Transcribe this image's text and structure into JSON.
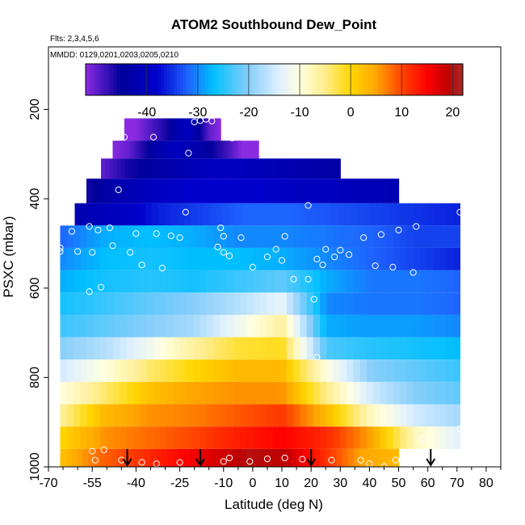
{
  "chart_data": {
    "type": "heatmap",
    "title": "ATOM2 Southbound Dew_Point",
    "subtitle_flights": "Flts: 2,3,4,5,6",
    "subtitle_dates": "MMDD: 0129,0201,0203,0205,0210",
    "xlabel": "Latitude (deg N)",
    "ylabel": "PSXC (mbar)",
    "xlim": [
      -70,
      85
    ],
    "ylim": [
      1000,
      60
    ],
    "y_reversed": true,
    "x_ticks": [
      -70,
      -55,
      -40,
      -25,
      -10,
      0,
      10,
      20,
      30,
      40,
      50,
      60,
      70,
      80
    ],
    "x_tick_labels": [
      "-70",
      "-55",
      "-40",
      "-25",
      "-10",
      "0",
      "10",
      "20",
      "30",
      "40",
      "50",
      "60",
      "70",
      "80"
    ],
    "x_minor_ticks": [
      -65,
      -60,
      -50,
      -45,
      -35,
      -30,
      -20,
      -15,
      -5,
      5,
      15,
      25,
      35,
      45,
      55,
      65,
      75,
      85
    ],
    "y_ticks": [
      200,
      400,
      600,
      800,
      1000
    ],
    "y_tick_labels": [
      "200",
      "400",
      "600",
      "800",
      "1000"
    ],
    "colorbar": {
      "range": [
        -52,
        22
      ],
      "ticks": [
        -40,
        -30,
        -20,
        -10,
        0,
        10,
        20
      ],
      "tick_labels": [
        "-40",
        "-30",
        "-20",
        "-10",
        "0",
        "10",
        "20"
      ],
      "colors": [
        {
          "v": -52,
          "c": "#8a2be2"
        },
        {
          "v": -45,
          "c": "#00009c"
        },
        {
          "v": -38,
          "c": "#0000cd"
        },
        {
          "v": -32,
          "c": "#1e64ff"
        },
        {
          "v": -27,
          "c": "#00bfff"
        },
        {
          "v": -20,
          "c": "#87cefa"
        },
        {
          "v": -14,
          "c": "#dff0ff"
        },
        {
          "v": -10,
          "c": "#ffffe0"
        },
        {
          "v": -5,
          "c": "#ffec8b"
        },
        {
          "v": 0,
          "c": "#ffd700"
        },
        {
          "v": 5,
          "c": "#ffa500"
        },
        {
          "v": 10,
          "c": "#ff4500"
        },
        {
          "v": 15,
          "c": "#ff0000"
        },
        {
          "v": 19,
          "c": "#c00000"
        },
        {
          "v": 22,
          "c": "#a52a2a"
        }
      ]
    },
    "layers": [
      {
        "p_top": 220,
        "p_bot": 270,
        "lat_min": -44,
        "lat_max": -11,
        "values": [
          -52,
          -52,
          -50,
          -48,
          -46,
          -42,
          -40,
          -45,
          -50,
          -52
        ]
      },
      {
        "p_top": 270,
        "p_bot": 310,
        "lat_min": -48,
        "lat_max": 2,
        "values": [
          -52,
          -50,
          -46,
          -42,
          -40,
          -42,
          -45,
          -48,
          -52,
          -52
        ]
      },
      {
        "p_top": 310,
        "p_bot": 355,
        "lat_min": -52,
        "lat_max": 30,
        "values": [
          -50,
          -46,
          -44,
          -42,
          -40,
          -40,
          -41,
          -42,
          -43,
          -44
        ]
      },
      {
        "p_top": 355,
        "p_bot": 410,
        "lat_min": -57,
        "lat_max": 50,
        "values": [
          -46,
          -42,
          -40,
          -38,
          -38,
          -38,
          -40,
          -40,
          -41,
          -42
        ]
      },
      {
        "p_top": 410,
        "p_bot": 460,
        "lat_min": -61,
        "lat_max": 71,
        "values": [
          -42,
          -40,
          -36,
          -34,
          -32,
          -32,
          -33,
          -34,
          -35,
          -36
        ]
      },
      {
        "p_top": 460,
        "p_bot": 510,
        "lat_min": -66,
        "lat_max": 71,
        "values": [
          -32,
          -28,
          -27,
          -28,
          -30,
          -30,
          -31,
          -32,
          -34,
          -34
        ]
      },
      {
        "p_top": 510,
        "p_bot": 560,
        "lat_min": -66,
        "lat_max": 71,
        "values": [
          -30,
          -27,
          -26,
          -27,
          -27,
          -28,
          -30,
          -32,
          -34,
          -36
        ]
      },
      {
        "p_top": 560,
        "p_bot": 610,
        "lat_min": -66,
        "lat_max": 71,
        "values": [
          -28,
          -26,
          -25,
          -26,
          -24,
          -22,
          -28,
          -31,
          -31,
          -32
        ]
      },
      {
        "p_top": 610,
        "p_bot": 660,
        "lat_min": -66,
        "lat_max": 71,
        "values": [
          -26,
          -24,
          -22,
          -20,
          -17,
          -13,
          -30,
          -31,
          -31,
          -32
        ]
      },
      {
        "p_top": 660,
        "p_bot": 710,
        "lat_min": -66,
        "lat_max": 71,
        "values": [
          -24,
          -22,
          -20,
          -18,
          -12,
          -6,
          -28,
          -29,
          -29,
          -30
        ]
      },
      {
        "p_top": 710,
        "p_bot": 760,
        "lat_min": -66,
        "lat_max": 71,
        "values": [
          -20,
          -17,
          -12,
          -6,
          -2,
          -1,
          -23,
          -25,
          -26,
          -27
        ]
      },
      {
        "p_top": 760,
        "p_bot": 810,
        "lat_min": -66,
        "lat_max": 71,
        "values": [
          -15,
          -10,
          -4,
          0,
          3,
          3,
          -10,
          -20,
          -22,
          -24
        ]
      },
      {
        "p_top": 810,
        "p_bot": 860,
        "lat_min": -66,
        "lat_max": 71,
        "values": [
          -10,
          -4,
          2,
          5,
          6,
          6,
          -5,
          -15,
          -20,
          -22
        ]
      },
      {
        "p_top": 860,
        "p_bot": 910,
        "lat_min": -66,
        "lat_max": 71,
        "values": [
          -6,
          3,
          6,
          7,
          9,
          11,
          3,
          -8,
          -15,
          -18
        ]
      },
      {
        "p_top": 910,
        "p_bot": 960,
        "lat_min": -66,
        "lat_max": 71,
        "values": [
          0,
          6,
          8,
          10,
          13,
          15,
          12,
          5,
          -8,
          -14
        ]
      },
      {
        "p_top": 960,
        "p_bot": 1000,
        "lat_min": -66,
        "lat_max": 50,
        "values": [
          2,
          8,
          11,
          14,
          17,
          20,
          19,
          12,
          5,
          3
        ]
      }
    ],
    "points": [
      {
        "lat": -20,
        "p": 228
      },
      {
        "lat": -18,
        "p": 225
      },
      {
        "lat": -16,
        "p": 222
      },
      {
        "lat": -14,
        "p": 226
      },
      {
        "lat": -46,
        "p": 262
      },
      {
        "lat": -44,
        "p": 262
      },
      {
        "lat": -34,
        "p": 262
      },
      {
        "lat": -7,
        "p": 264
      },
      {
        "lat": -22,
        "p": 298
      },
      {
        "lat": -57,
        "p": 317
      },
      {
        "lat": -46,
        "p": 380
      },
      {
        "lat": 19,
        "p": 415
      },
      {
        "lat": -23,
        "p": 430
      },
      {
        "lat": 71,
        "p": 430
      },
      {
        "lat": -56,
        "p": 462
      },
      {
        "lat": -49,
        "p": 465
      },
      {
        "lat": -11,
        "p": 465
      },
      {
        "lat": 56,
        "p": 462
      },
      {
        "lat": -62,
        "p": 473
      },
      {
        "lat": -53,
        "p": 470
      },
      {
        "lat": -40,
        "p": 478
      },
      {
        "lat": -33,
        "p": 478
      },
      {
        "lat": -28,
        "p": 483
      },
      {
        "lat": -25,
        "p": 487
      },
      {
        "lat": -10,
        "p": 484
      },
      {
        "lat": -4,
        "p": 487
      },
      {
        "lat": 11,
        "p": 484
      },
      {
        "lat": 38,
        "p": 487
      },
      {
        "lat": 44,
        "p": 480
      },
      {
        "lat": 50,
        "p": 470
      },
      {
        "lat": -66,
        "p": 510
      },
      {
        "lat": -66,
        "p": 518
      },
      {
        "lat": -60,
        "p": 518
      },
      {
        "lat": -48,
        "p": 505
      },
      {
        "lat": -12,
        "p": 508
      },
      {
        "lat": 8,
        "p": 513
      },
      {
        "lat": 25,
        "p": 513
      },
      {
        "lat": 30,
        "p": 515
      },
      {
        "lat": -55,
        "p": 520
      },
      {
        "lat": -42,
        "p": 520
      },
      {
        "lat": -10,
        "p": 520
      },
      {
        "lat": -8,
        "p": 528
      },
      {
        "lat": 5,
        "p": 530
      },
      {
        "lat": 10,
        "p": 538
      },
      {
        "lat": 22,
        "p": 535
      },
      {
        "lat": 28,
        "p": 530
      },
      {
        "lat": 33,
        "p": 525
      },
      {
        "lat": -38,
        "p": 548
      },
      {
        "lat": -31,
        "p": 555
      },
      {
        "lat": 0,
        "p": 553
      },
      {
        "lat": 24,
        "p": 548
      },
      {
        "lat": 42,
        "p": 550
      },
      {
        "lat": 48,
        "p": 553
      },
      {
        "lat": 55,
        "p": 565
      },
      {
        "lat": 19,
        "p": 580
      },
      {
        "lat": 14,
        "p": 580
      },
      {
        "lat": -56,
        "p": 608
      },
      {
        "lat": -52,
        "p": 598
      },
      {
        "lat": 21,
        "p": 625
      },
      {
        "lat": 22,
        "p": 755
      },
      {
        "lat": 71,
        "p": 915
      },
      {
        "lat": 58,
        "p": 938
      },
      {
        "lat": -55,
        "p": 965
      },
      {
        "lat": -51,
        "p": 962
      },
      {
        "lat": -54,
        "p": 985
      },
      {
        "lat": -45,
        "p": 985
      },
      {
        "lat": -38,
        "p": 990
      },
      {
        "lat": -33,
        "p": 993
      },
      {
        "lat": -25,
        "p": 990
      },
      {
        "lat": -10,
        "p": 988
      },
      {
        "lat": -8,
        "p": 980
      },
      {
        "lat": -1,
        "p": 988
      },
      {
        "lat": 5,
        "p": 982
      },
      {
        "lat": 11,
        "p": 980
      },
      {
        "lat": 17,
        "p": 983
      },
      {
        "lat": 27,
        "p": 985
      },
      {
        "lat": 37,
        "p": 985
      },
      {
        "lat": 40,
        "p": 993
      },
      {
        "lat": 45,
        "p": 999
      },
      {
        "lat": 49,
        "p": 985
      },
      {
        "lat": -67,
        "p": 965
      }
    ],
    "arrows": [
      -43,
      -18,
      20,
      61
    ]
  }
}
